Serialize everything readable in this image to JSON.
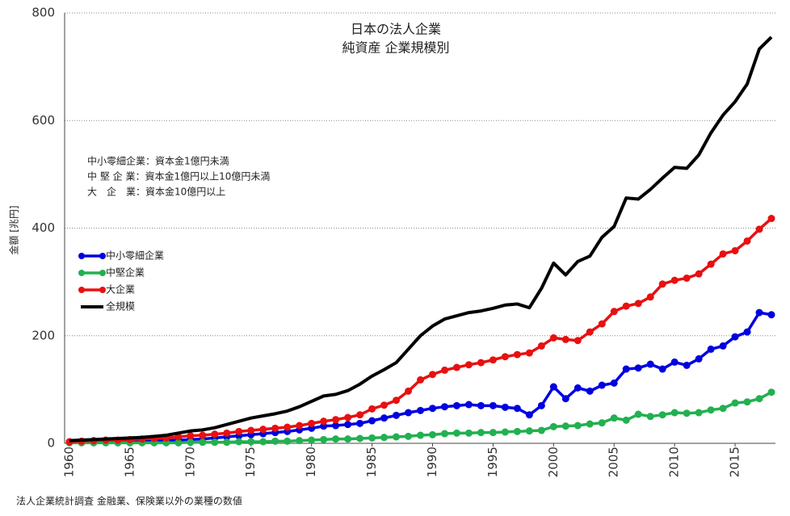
{
  "chart_data": {
    "type": "line",
    "title": [
      "日本の法人企業",
      "純資産 企業規模別"
    ],
    "y_label": "金額 [兆円]",
    "notes": [
      "中小零細企業：資本金1億円未満",
      "中 堅 企 業：資本金1億円以上10億円未満",
      "大　企　業：資本金10億円以上"
    ],
    "source": "法人企業統計調査 金融業、保険業以外の業種の数値",
    "x": [
      1960,
      1961,
      1962,
      1963,
      1964,
      1965,
      1966,
      1967,
      1968,
      1969,
      1970,
      1971,
      1972,
      1973,
      1974,
      1975,
      1976,
      1977,
      1978,
      1979,
      1980,
      1981,
      1982,
      1983,
      1984,
      1985,
      1986,
      1987,
      1988,
      1989,
      1990,
      1991,
      1992,
      1993,
      1994,
      1995,
      1996,
      1997,
      1998,
      1999,
      2000,
      2001,
      2002,
      2003,
      2004,
      2005,
      2006,
      2007,
      2008,
      2009,
      2010,
      2011,
      2012,
      2013,
      2014,
      2015,
      2016,
      2017,
      2018
    ],
    "xlim": [
      1960,
      2018
    ],
    "xticks": [
      1960,
      1965,
      1970,
      1975,
      1980,
      1985,
      1990,
      1995,
      2000,
      2005,
      2010,
      2015
    ],
    "ylim": [
      0,
      800
    ],
    "yticks": [
      0,
      200,
      400,
      600,
      800
    ],
    "grid": true,
    "legend": "left",
    "series": [
      {
        "name": "中小零細企業",
        "color": "#0000e0",
        "marker": true,
        "values": [
          2,
          2,
          2,
          3,
          3,
          3,
          4,
          4,
          5,
          6,
          7,
          8,
          10,
          12,
          14,
          16,
          18,
          20,
          22,
          25,
          28,
          32,
          33,
          35,
          37,
          42,
          47,
          52,
          57,
          61,
          65,
          68,
          70,
          72,
          70,
          70,
          67,
          65,
          53,
          70,
          105,
          83,
          103,
          97,
          108,
          112,
          138,
          140,
          147,
          138,
          151,
          145,
          157,
          175,
          181,
          198,
          207,
          243,
          239
        ]
      },
      {
        "name": "中堅企業",
        "color": "#22b050",
        "marker": true,
        "values": [
          1,
          1,
          1,
          1,
          1,
          1,
          1,
          1,
          1,
          1,
          2,
          2,
          2,
          2,
          3,
          3,
          3,
          4,
          4,
          5,
          6,
          7,
          8,
          8,
          9,
          10,
          11,
          12,
          13,
          15,
          16,
          18,
          19,
          19,
          20,
          20,
          21,
          22,
          23,
          24,
          31,
          32,
          33,
          36,
          38,
          47,
          43,
          54,
          50,
          53,
          57,
          56,
          57,
          62,
          65,
          75,
          77,
          83,
          95
        ]
      },
      {
        "name": "大企業",
        "color": "#e81010",
        "marker": true,
        "values": [
          3,
          4,
          5,
          6,
          6,
          7,
          8,
          9,
          10,
          12,
          14,
          15,
          17,
          19,
          22,
          24,
          26,
          28,
          30,
          33,
          37,
          41,
          44,
          48,
          53,
          64,
          71,
          80,
          97,
          118,
          128,
          136,
          141,
          146,
          150,
          155,
          161,
          165,
          168,
          181,
          196,
          193,
          191,
          207,
          222,
          245,
          255,
          260,
          272,
          296,
          303,
          307,
          315,
          333,
          352,
          358,
          376,
          398,
          418
        ]
      },
      {
        "name": "全規模",
        "color": "#000000",
        "marker": false,
        "values": [
          5,
          6,
          7,
          8,
          9,
          10,
          11,
          13,
          15,
          19,
          23,
          25,
          29,
          35,
          41,
          47,
          51,
          55,
          60,
          68,
          78,
          88,
          91,
          98,
          110,
          125,
          137,
          150,
          175,
          200,
          218,
          231,
          237,
          243,
          246,
          251,
          257,
          259,
          252,
          288,
          335,
          313,
          338,
          348,
          383,
          403,
          456,
          454,
          472,
          493,
          513,
          511,
          536,
          577,
          610,
          635,
          668,
          733,
          755
        ]
      }
    ]
  }
}
